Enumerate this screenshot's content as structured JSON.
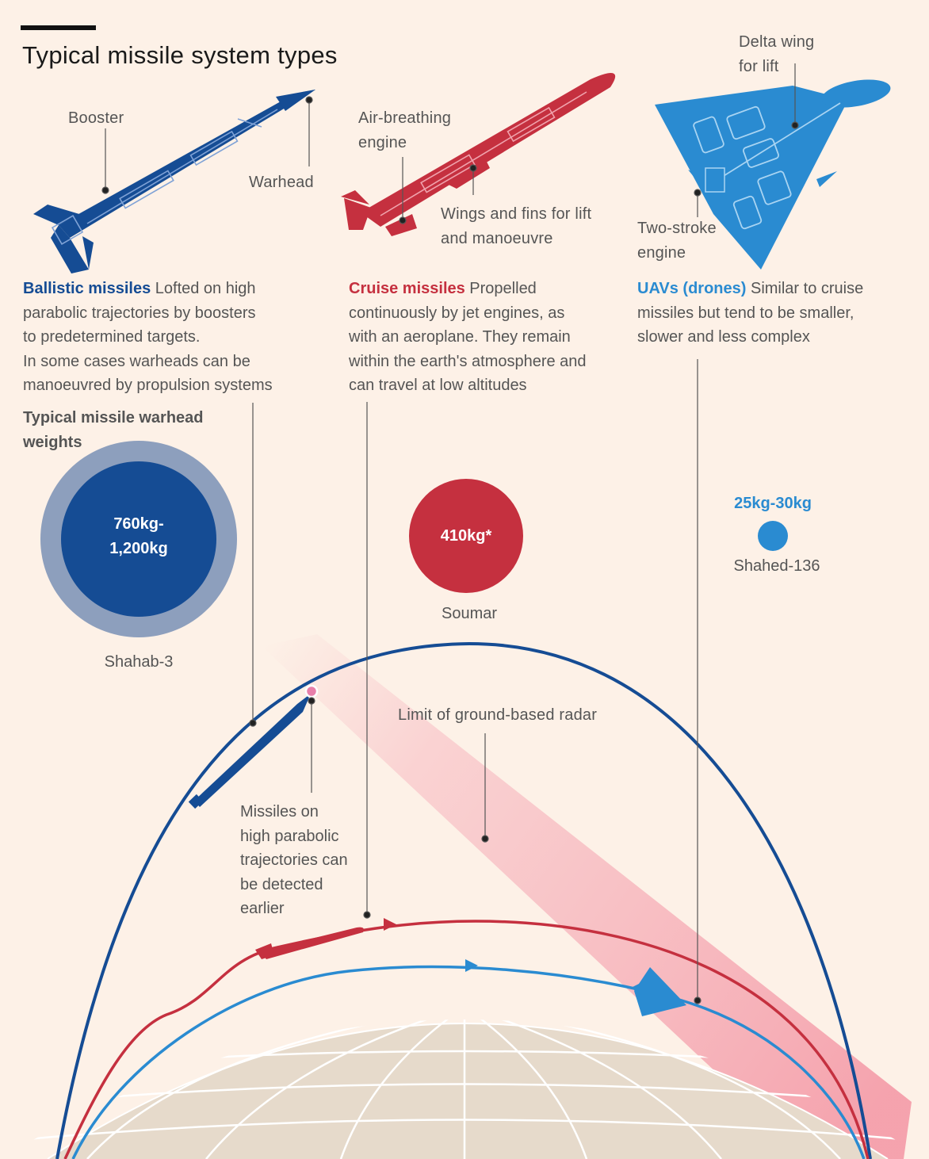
{
  "header": {
    "title": "Typical missile system types"
  },
  "callouts": {
    "booster": "Booster",
    "warhead": "Warhead",
    "air_breathing_1": "Air-breathing",
    "air_breathing_2": "engine",
    "wings_1": "Wings and fins for lift",
    "wings_2": "and manoeuvre",
    "delta_1": "Delta wing",
    "delta_2": "for lift",
    "two_stroke_1": "Two-stroke",
    "two_stroke_2": "engine"
  },
  "types": {
    "ballistic": {
      "name": "Ballistic missiles",
      "lines": [
        " Lofted on high",
        "parabolic trajectories by boosters",
        "to predetermined targets.",
        "In some cases warheads can be",
        "manoeuvred by propulsion systems"
      ]
    },
    "cruise": {
      "name": "Cruise missiles",
      "lines": [
        " Propelled",
        "continuously by jet engines, as",
        "with an aeroplane. They remain",
        "within the earth's atmosphere and",
        "can travel at low altitudes"
      ]
    },
    "uav": {
      "name": "UAVs (drones)",
      "lines": [
        " Similar to cruise",
        "missiles but tend to be smaller,",
        "slower and less complex"
      ]
    }
  },
  "weights": {
    "heading_1": "Typical missile warhead",
    "heading_2": "weights",
    "shahab": {
      "value_1": "760kg-",
      "value_2": "1,200kg",
      "name": "Shahab-3",
      "min_kg": 760,
      "max_kg": 1200
    },
    "soumar": {
      "value": "410kg*",
      "name": "Soumar",
      "kg": 410
    },
    "shahed": {
      "value": "25kg-30kg",
      "name": "Shahed-136",
      "min_kg": 25,
      "max_kg": 30
    }
  },
  "trajectory": {
    "radar_label": "Limit of ground-based radar",
    "detect_1": "Missiles on",
    "detect_2": "high parabolic",
    "detect_3": "trajectories can",
    "detect_4": "be detected",
    "detect_5": "earlier"
  },
  "colors": {
    "ballistic": "#154c94",
    "cruise": "#c5303f",
    "uav": "#2a8bd1",
    "shahab_ring": "#8d9fbd",
    "background": "#fdf1e7",
    "earth": "#e6dacb",
    "radar": "#f7b9c1"
  }
}
